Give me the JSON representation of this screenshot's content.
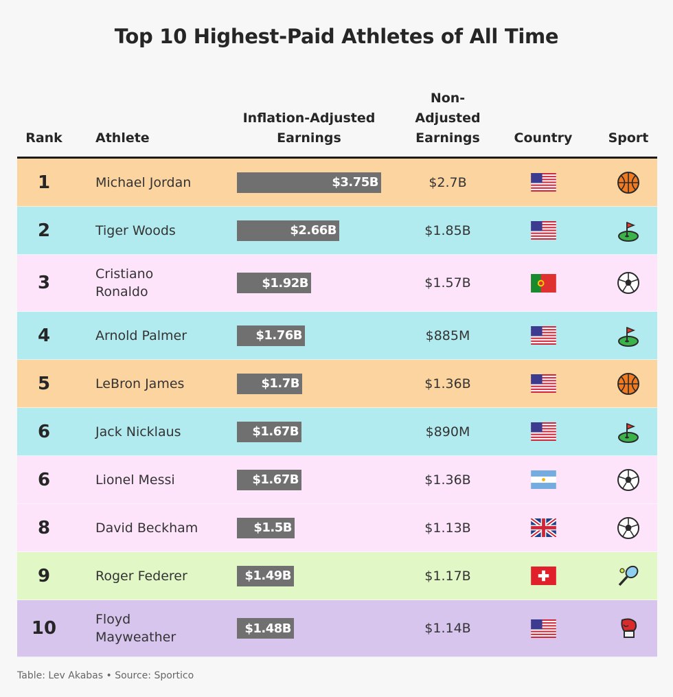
{
  "chart_data": {
    "type": "table",
    "title": "Top 10 Highest-Paid Athletes of All Time",
    "columns": [
      "Rank",
      "Athlete",
      "Inflation-Adjusted Earnings",
      "Non-Adjusted Earnings",
      "Country",
      "Sport"
    ],
    "rows": [
      {
        "rank": "1",
        "athlete": "Michael Jordan",
        "adjusted": 3.75,
        "adjusted_label": "$3.75B",
        "non_adjusted": "$2.7B",
        "country": "USA",
        "sport": "basketball",
        "bg": "#fcd49f"
      },
      {
        "rank": "2",
        "athlete": "Tiger Woods",
        "adjusted": 2.66,
        "adjusted_label": "$2.66B",
        "non_adjusted": "$1.85B",
        "country": "USA",
        "sport": "golf",
        "bg": "#b2ebef"
      },
      {
        "rank": "3",
        "athlete": "Cristiano Ronaldo",
        "adjusted": 1.92,
        "adjusted_label": "$1.92B",
        "non_adjusted": "$1.57B",
        "country": "Portugal",
        "sport": "soccer",
        "bg": "#fde4fb"
      },
      {
        "rank": "4",
        "athlete": "Arnold Palmer",
        "adjusted": 1.76,
        "adjusted_label": "$1.76B",
        "non_adjusted": "$885M",
        "country": "USA",
        "sport": "golf",
        "bg": "#b2ebef"
      },
      {
        "rank": "5",
        "athlete": "LeBron James",
        "adjusted": 1.7,
        "adjusted_label": "$1.7B",
        "non_adjusted": "$1.36B",
        "country": "USA",
        "sport": "basketball",
        "bg": "#fcd49f"
      },
      {
        "rank": "6",
        "athlete": "Jack Nicklaus",
        "adjusted": 1.67,
        "adjusted_label": "$1.67B",
        "non_adjusted": "$890M",
        "country": "USA",
        "sport": "golf",
        "bg": "#b2ebef"
      },
      {
        "rank": "6",
        "athlete": "Lionel Messi",
        "adjusted": 1.67,
        "adjusted_label": "$1.67B",
        "non_adjusted": "$1.36B",
        "country": "Argentina",
        "sport": "soccer",
        "bg": "#fde4fb"
      },
      {
        "rank": "8",
        "athlete": "David Beckham",
        "adjusted": 1.5,
        "adjusted_label": "$1.5B",
        "non_adjusted": "$1.13B",
        "country": "UK",
        "sport": "soccer",
        "bg": "#fde4fb"
      },
      {
        "rank": "9",
        "athlete": "Roger Federer",
        "adjusted": 1.49,
        "adjusted_label": "$1.49B",
        "non_adjusted": "$1.17B",
        "country": "Switzerland",
        "sport": "tennis",
        "bg": "#e1f7c6"
      },
      {
        "rank": "10",
        "athlete": "Floyd Mayweather",
        "adjusted": 1.48,
        "adjusted_label": "$1.48B",
        "non_adjusted": "$1.14B",
        "country": "USA",
        "sport": "boxing",
        "bg": "#d7c5ee"
      }
    ],
    "bar_color": "#707070",
    "bar_max": 3.75
  },
  "header": {
    "rank": "Rank",
    "athlete": "Athlete",
    "adjusted_line1": "Inflation-Adjusted",
    "adjusted_line2": "Earnings",
    "nonadj_line1": "Non-",
    "nonadj_line2": "Adjusted",
    "nonadj_line3": "Earnings",
    "country": "Country",
    "sport": "Sport"
  },
  "footer": "Table: Lev Akabas • Source: Sportico"
}
